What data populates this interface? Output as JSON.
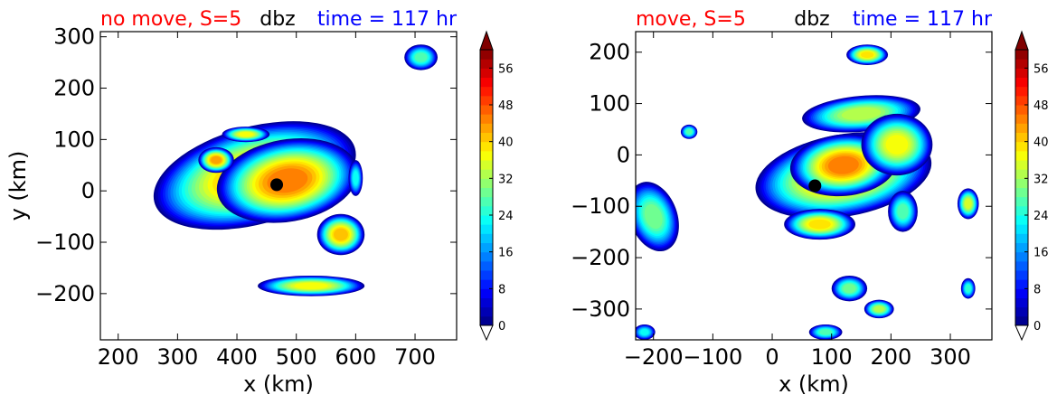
{
  "chart_data": [
    {
      "type": "contour",
      "title_left": "no move, S=5",
      "title_center": "dbz",
      "title_right": "time = 117 hr",
      "xlabel": "x (km)",
      "ylabel": "y (km)",
      "xlim": [
        170,
        770
      ],
      "ylim": [
        -290,
        310
      ],
      "xticks": [
        200,
        300,
        400,
        500,
        600,
        700
      ],
      "yticks": [
        300,
        200,
        100,
        0,
        -100,
        -200
      ],
      "xtick_labels": [
        "200",
        "300",
        "400",
        "500",
        "600",
        "700"
      ],
      "ytick_labels": [
        "300",
        "200",
        "100",
        "0",
        "−100",
        "−200"
      ],
      "center_marker": {
        "x": 467,
        "y": 12
      },
      "colorbar": {
        "ticks": [
          0,
          8,
          16,
          24,
          32,
          40,
          48,
          56
        ],
        "range": [
          0,
          60
        ],
        "extend": "both"
      },
      "blobs": [
        {
          "x": 430,
          "y": 30,
          "rx": 175,
          "ry": 95,
          "rot": -15,
          "peak": 44
        },
        {
          "x": 485,
          "y": 20,
          "rx": 120,
          "ry": 80,
          "rot": -10,
          "peak": 46
        },
        {
          "x": 365,
          "y": 60,
          "rx": 30,
          "ry": 25,
          "rot": 0,
          "peak": 44
        },
        {
          "x": 415,
          "y": 110,
          "rx": 40,
          "ry": 15,
          "rot": 0,
          "peak": 38
        },
        {
          "x": 575,
          "y": -85,
          "rx": 40,
          "ry": 40,
          "rot": 0,
          "peak": 42
        },
        {
          "x": 525,
          "y": -185,
          "rx": 90,
          "ry": 20,
          "rot": 0,
          "peak": 38
        },
        {
          "x": 600,
          "y": 25,
          "rx": 12,
          "ry": 35,
          "rot": 0,
          "peak": 24
        },
        {
          "x": 710,
          "y": 260,
          "rx": 28,
          "ry": 25,
          "rot": 0,
          "peak": 28
        }
      ]
    },
    {
      "type": "contour",
      "title_left": "move, S=5",
      "title_center": "dbz",
      "title_right": "time = 117 hr",
      "xlabel": "x (km)",
      "ylabel": "",
      "xlim": [
        -230,
        370
      ],
      "ylim": [
        -360,
        240
      ],
      "xticks": [
        -200,
        -100,
        0,
        100,
        200,
        300
      ],
      "yticks": [
        200,
        100,
        0,
        -100,
        -200,
        -300
      ],
      "xtick_labels": [
        "−200",
        "−100",
        "0",
        "100",
        "200",
        "300"
      ],
      "ytick_labels": [
        "200",
        "100",
        "0",
        "−100",
        "−200",
        "−300"
      ],
      "center_marker": {
        "x": 72,
        "y": -60
      },
      "colorbar": {
        "ticks": [
          0,
          8,
          16,
          24,
          32,
          40,
          48,
          56
        ],
        "range": [
          0,
          60
        ],
        "extend": "both"
      },
      "blobs": [
        {
          "x": 120,
          "y": -40,
          "rx": 150,
          "ry": 80,
          "rot": -10,
          "peak": 44
        },
        {
          "x": 120,
          "y": -20,
          "rx": 90,
          "ry": 60,
          "rot": -5,
          "peak": 46
        },
        {
          "x": 150,
          "y": 80,
          "rx": 100,
          "ry": 35,
          "rot": -5,
          "peak": 34
        },
        {
          "x": 210,
          "y": 20,
          "rx": 60,
          "ry": 60,
          "rot": 0,
          "peak": 38
        },
        {
          "x": 80,
          "y": -135,
          "rx": 60,
          "ry": 30,
          "rot": 0,
          "peak": 40
        },
        {
          "x": 220,
          "y": -110,
          "rx": 25,
          "ry": 40,
          "rot": 0,
          "peak": 28
        },
        {
          "x": 160,
          "y": 195,
          "rx": 35,
          "ry": 20,
          "rot": 0,
          "peak": 40
        },
        {
          "x": -200,
          "y": -120,
          "rx": 40,
          "ry": 70,
          "rot": -20,
          "peak": 30
        },
        {
          "x": -140,
          "y": 45,
          "rx": 14,
          "ry": 14,
          "rot": 0,
          "peak": 28
        },
        {
          "x": 330,
          "y": -95,
          "rx": 18,
          "ry": 30,
          "rot": 0,
          "peak": 36
        },
        {
          "x": 330,
          "y": -260,
          "rx": 12,
          "ry": 20,
          "rot": 0,
          "peak": 26
        },
        {
          "x": 130,
          "y": -260,
          "rx": 30,
          "ry": 25,
          "rot": 0,
          "peak": 30
        },
        {
          "x": 180,
          "y": -300,
          "rx": 25,
          "ry": 18,
          "rot": 0,
          "peak": 34
        },
        {
          "x": 90,
          "y": -345,
          "rx": 28,
          "ry": 15,
          "rot": 0,
          "peak": 28
        },
        {
          "x": -215,
          "y": -345,
          "rx": 18,
          "ry": 15,
          "rot": 0,
          "peak": 24
        }
      ]
    }
  ]
}
